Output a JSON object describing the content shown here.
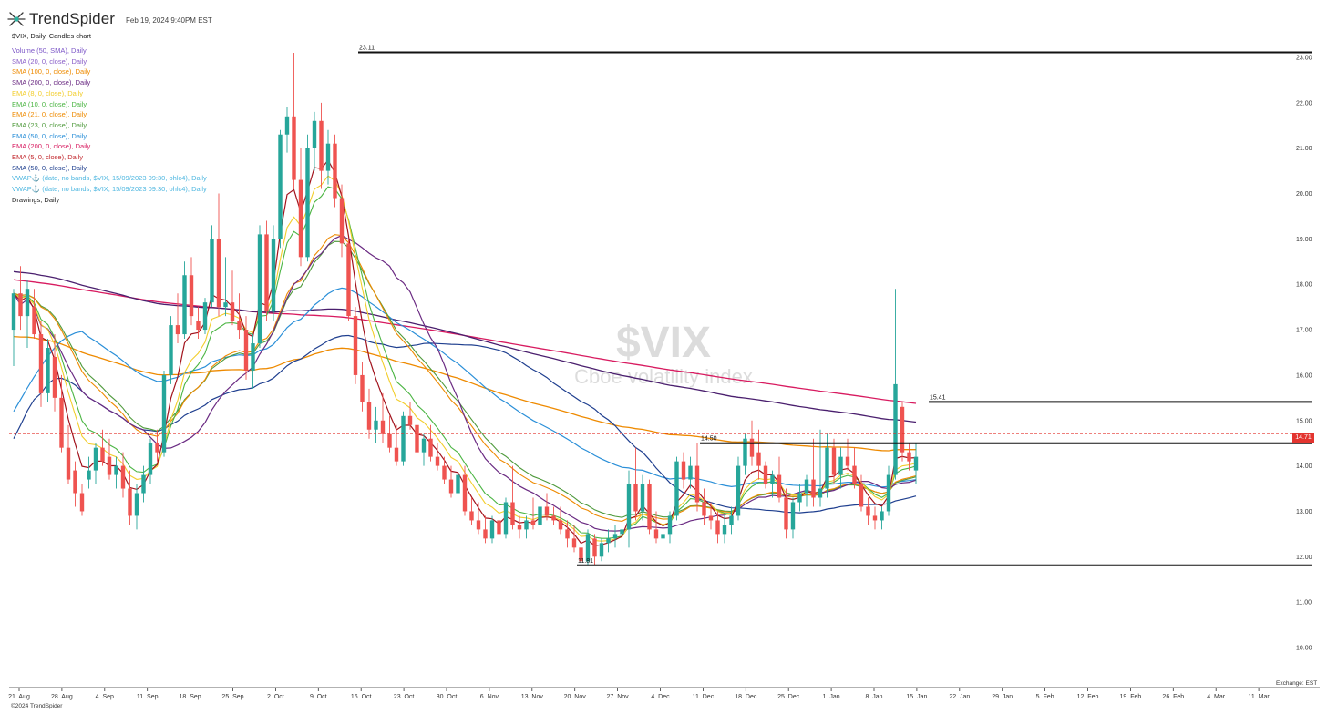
{
  "header": {
    "brand_name": "TrendSpider",
    "timestamp": "Feb 19, 2024 9:40PM EST"
  },
  "chart_desc": "$VIX, Daily, Candles chart",
  "legend": [
    {
      "label": "Volume (50, SMA), Daily",
      "color": "#7b55c7"
    },
    {
      "label": "SMA (20, 0, close), Daily",
      "color": "#8a5fc8"
    },
    {
      "label": "SMA (100, 0, close), Daily",
      "color": "#ee8a00"
    },
    {
      "label": "SMA (200, 0, close), Daily",
      "color": "#6a2a82"
    },
    {
      "label": "EMA (8, 0, close), Daily",
      "color": "#f2cd2b"
    },
    {
      "label": "EMA (10, 0, close), Daily",
      "color": "#4bb543"
    },
    {
      "label": "EMA (21, 0, close), Daily",
      "color": "#ee8a00"
    },
    {
      "label": "EMA (23, 0, close), Daily",
      "color": "#4f9a3c"
    },
    {
      "label": "EMA (50, 0, close), Daily",
      "color": "#2a8fd8"
    },
    {
      "label": "EMA (200, 0, close), Daily",
      "color": "#d81b60"
    },
    {
      "label": "EMA (5, 0, close), Daily",
      "color": "#c2272d"
    },
    {
      "label": "SMA (50, 0, close), Daily",
      "color": "#1f3f8f"
    },
    {
      "label": "VWAP⚓ (date, no bands, $VIX, 15/09/2023 09:30, ohlc4), Daily",
      "color": "#4fb7e0"
    },
    {
      "label": "VWAP⚓ (date, no bands, $VIX, 15/09/2023 09:30, ohlc4), Daily",
      "color": "#4fb7e0"
    },
    {
      "label": "Drawings, Daily",
      "color": "#222222"
    }
  ],
  "colors": {
    "up": "#26a69a",
    "down": "#ef5350",
    "price_line": "#e3342f"
  },
  "chart_data": {
    "type": "candlestick",
    "symbol": "$VIX",
    "watermark_symbol": "$VIX",
    "watermark_name": "Cboe volatility index",
    "y_axis": {
      "min": 9.5,
      "max": 23.1,
      "ticks": [
        "10.00",
        "11.00",
        "12.00",
        "13.00",
        "14.00",
        "15.00",
        "16.00",
        "17.00",
        "18.00",
        "19.00",
        "20.00",
        "21.00",
        "22.00",
        "23.00"
      ]
    },
    "x_ticks": [
      "21. Aug",
      "28. Aug",
      "4. Sep",
      "11. Sep",
      "18. Sep",
      "25. Sep",
      "2. Oct",
      "9. Oct",
      "16. Oct",
      "23. Oct",
      "30. Oct",
      "6. Nov",
      "13. Nov",
      "20. Nov",
      "27. Nov",
      "4. Dec",
      "11. Dec",
      "18. Dec",
      "25. Dec",
      "1. Jan",
      "8. Jan",
      "15. Jan",
      "22. Jan",
      "29. Jan",
      "5. Feb",
      "12. Feb",
      "19. Feb",
      "26. Feb",
      "4. Mar",
      "11. Mar"
    ],
    "current_price": 14.71,
    "current_price_label": "14.71",
    "horizontal_levels": [
      {
        "value": 23.11,
        "label": "23.11",
        "from": "21. Aug"
      },
      {
        "value": 15.41,
        "label": "15.41",
        "from": "15. Jan"
      },
      {
        "value": 14.5,
        "label": "14.50",
        "from": "4. Dec"
      },
      {
        "value": 11.81,
        "label": "11.81",
        "from": "13. Nov"
      }
    ],
    "candles": [
      {
        "o": 17.0,
        "h": 17.9,
        "l": 16.2,
        "c": 17.8
      },
      {
        "o": 17.8,
        "h": 18.4,
        "l": 17.0,
        "c": 17.3
      },
      {
        "o": 17.3,
        "h": 18.1,
        "l": 16.6,
        "c": 17.9
      },
      {
        "o": 17.5,
        "h": 17.9,
        "l": 16.8,
        "c": 16.9
      },
      {
        "o": 16.9,
        "h": 17.2,
        "l": 15.3,
        "c": 15.6
      },
      {
        "o": 15.6,
        "h": 16.8,
        "l": 15.4,
        "c": 16.6
      },
      {
        "o": 16.4,
        "h": 16.9,
        "l": 15.2,
        "c": 15.5
      },
      {
        "o": 15.5,
        "h": 16.0,
        "l": 14.3,
        "c": 14.4
      },
      {
        "o": 14.4,
        "h": 14.9,
        "l": 13.6,
        "c": 13.7
      },
      {
        "o": 13.9,
        "h": 14.1,
        "l": 13.1,
        "c": 13.4
      },
      {
        "o": 13.4,
        "h": 13.6,
        "l": 12.9,
        "c": 13.0
      },
      {
        "o": 13.7,
        "h": 14.2,
        "l": 13.5,
        "c": 13.9
      },
      {
        "o": 13.9,
        "h": 14.5,
        "l": 13.6,
        "c": 14.4
      },
      {
        "o": 14.4,
        "h": 14.8,
        "l": 14.0,
        "c": 14.1
      },
      {
        "o": 14.2,
        "h": 14.6,
        "l": 13.7,
        "c": 13.8
      },
      {
        "o": 13.8,
        "h": 14.2,
        "l": 13.5,
        "c": 14.0
      },
      {
        "o": 14.0,
        "h": 14.3,
        "l": 13.3,
        "c": 13.5
      },
      {
        "o": 13.5,
        "h": 13.9,
        "l": 12.7,
        "c": 12.9
      },
      {
        "o": 12.9,
        "h": 13.6,
        "l": 12.6,
        "c": 13.4
      },
      {
        "o": 13.4,
        "h": 14.0,
        "l": 13.2,
        "c": 13.8
      },
      {
        "o": 13.8,
        "h": 14.6,
        "l": 13.6,
        "c": 14.5
      },
      {
        "o": 14.5,
        "h": 14.8,
        "l": 14.1,
        "c": 14.3
      },
      {
        "o": 14.3,
        "h": 16.1,
        "l": 14.2,
        "c": 16.0
      },
      {
        "o": 16.0,
        "h": 17.3,
        "l": 15.8,
        "c": 17.1
      },
      {
        "o": 17.1,
        "h": 17.8,
        "l": 16.7,
        "c": 16.9
      },
      {
        "o": 16.9,
        "h": 18.5,
        "l": 16.8,
        "c": 18.2
      },
      {
        "o": 18.2,
        "h": 18.6,
        "l": 17.1,
        "c": 17.3
      },
      {
        "o": 17.2,
        "h": 17.5,
        "l": 16.8,
        "c": 17.0
      },
      {
        "o": 17.0,
        "h": 17.7,
        "l": 16.9,
        "c": 17.6
      },
      {
        "o": 17.6,
        "h": 19.3,
        "l": 17.5,
        "c": 19.0
      },
      {
        "o": 19.0,
        "h": 20.0,
        "l": 17.3,
        "c": 17.5
      },
      {
        "o": 17.5,
        "h": 18.6,
        "l": 17.3,
        "c": 17.6
      },
      {
        "o": 17.6,
        "h": 18.3,
        "l": 17.1,
        "c": 17.2
      },
      {
        "o": 17.2,
        "h": 17.8,
        "l": 16.8,
        "c": 17.0
      },
      {
        "o": 17.0,
        "h": 17.3,
        "l": 15.9,
        "c": 16.1
      },
      {
        "o": 16.1,
        "h": 16.9,
        "l": 15.7,
        "c": 16.7
      },
      {
        "o": 16.7,
        "h": 19.3,
        "l": 16.6,
        "c": 19.1
      },
      {
        "o": 19.1,
        "h": 19.4,
        "l": 17.2,
        "c": 17.4
      },
      {
        "o": 17.4,
        "h": 19.3,
        "l": 17.2,
        "c": 19.0
      },
      {
        "o": 19.0,
        "h": 21.4,
        "l": 18.8,
        "c": 21.3
      },
      {
        "o": 21.3,
        "h": 21.9,
        "l": 20.9,
        "c": 21.7
      },
      {
        "o": 21.7,
        "h": 23.1,
        "l": 20.1,
        "c": 20.3
      },
      {
        "o": 20.3,
        "h": 21.0,
        "l": 18.4,
        "c": 18.6
      },
      {
        "o": 18.6,
        "h": 21.3,
        "l": 18.5,
        "c": 21.0
      },
      {
        "o": 21.0,
        "h": 21.8,
        "l": 20.5,
        "c": 21.6
      },
      {
        "o": 21.6,
        "h": 22.0,
        "l": 20.1,
        "c": 20.5
      },
      {
        "o": 20.5,
        "h": 21.4,
        "l": 20.2,
        "c": 21.1
      },
      {
        "o": 21.1,
        "h": 21.3,
        "l": 19.7,
        "c": 19.9
      },
      {
        "o": 19.9,
        "h": 20.2,
        "l": 18.6,
        "c": 18.9
      },
      {
        "o": 18.9,
        "h": 19.0,
        "l": 17.2,
        "c": 17.3
      },
      {
        "o": 17.3,
        "h": 17.5,
        "l": 15.8,
        "c": 16.0
      },
      {
        "o": 16.0,
        "h": 16.3,
        "l": 15.2,
        "c": 15.4
      },
      {
        "o": 15.4,
        "h": 15.7,
        "l": 14.6,
        "c": 14.8
      },
      {
        "o": 14.8,
        "h": 15.3,
        "l": 14.5,
        "c": 15.0
      },
      {
        "o": 15.0,
        "h": 15.6,
        "l": 14.5,
        "c": 14.7
      },
      {
        "o": 14.7,
        "h": 15.1,
        "l": 14.3,
        "c": 14.4
      },
      {
        "o": 14.4,
        "h": 14.9,
        "l": 14.0,
        "c": 14.1
      },
      {
        "o": 14.1,
        "h": 15.2,
        "l": 14.0,
        "c": 15.1
      },
      {
        "o": 15.1,
        "h": 15.4,
        "l": 14.8,
        "c": 14.9
      },
      {
        "o": 14.9,
        "h": 15.1,
        "l": 14.2,
        "c": 14.3
      },
      {
        "o": 14.3,
        "h": 14.7,
        "l": 14.0,
        "c": 14.6
      },
      {
        "o": 14.6,
        "h": 14.9,
        "l": 14.1,
        "c": 14.2
      },
      {
        "o": 14.2,
        "h": 14.5,
        "l": 13.9,
        "c": 14.0
      },
      {
        "o": 14.0,
        "h": 14.2,
        "l": 13.6,
        "c": 13.7
      },
      {
        "o": 13.7,
        "h": 14.0,
        "l": 13.3,
        "c": 13.4
      },
      {
        "o": 13.4,
        "h": 13.9,
        "l": 13.1,
        "c": 13.8
      },
      {
        "o": 13.8,
        "h": 14.0,
        "l": 12.9,
        "c": 13.0
      },
      {
        "o": 13.0,
        "h": 13.3,
        "l": 12.7,
        "c": 12.8
      },
      {
        "o": 12.8,
        "h": 13.2,
        "l": 12.5,
        "c": 12.6
      },
      {
        "o": 12.6,
        "h": 12.9,
        "l": 12.3,
        "c": 12.4
      },
      {
        "o": 12.4,
        "h": 12.9,
        "l": 12.3,
        "c": 12.8
      },
      {
        "o": 12.8,
        "h": 13.0,
        "l": 12.4,
        "c": 12.5
      },
      {
        "o": 12.5,
        "h": 13.3,
        "l": 12.4,
        "c": 13.2
      },
      {
        "o": 13.2,
        "h": 14.0,
        "l": 12.6,
        "c": 12.7
      },
      {
        "o": 12.7,
        "h": 12.9,
        "l": 12.4,
        "c": 12.6
      },
      {
        "o": 12.6,
        "h": 12.9,
        "l": 12.4,
        "c": 12.8
      },
      {
        "o": 12.8,
        "h": 13.3,
        "l": 12.6,
        "c": 12.7
      },
      {
        "o": 12.7,
        "h": 13.2,
        "l": 12.5,
        "c": 13.1
      },
      {
        "o": 13.1,
        "h": 13.4,
        "l": 12.8,
        "c": 12.9
      },
      {
        "o": 12.9,
        "h": 13.1,
        "l": 12.7,
        "c": 12.8
      },
      {
        "o": 12.8,
        "h": 13.1,
        "l": 12.5,
        "c": 12.6
      },
      {
        "o": 12.6,
        "h": 12.8,
        "l": 12.2,
        "c": 12.4
      },
      {
        "o": 12.4,
        "h": 12.7,
        "l": 12.1,
        "c": 12.2
      },
      {
        "o": 12.2,
        "h": 12.5,
        "l": 11.8,
        "c": 11.9
      },
      {
        "o": 11.9,
        "h": 12.6,
        "l": 11.8,
        "c": 12.5
      },
      {
        "o": 12.4,
        "h": 12.5,
        "l": 11.8,
        "c": 12.0
      },
      {
        "o": 12.0,
        "h": 12.4,
        "l": 11.9,
        "c": 12.3
      },
      {
        "o": 12.3,
        "h": 12.6,
        "l": 12.1,
        "c": 12.4
      },
      {
        "o": 12.4,
        "h": 12.7,
        "l": 12.2,
        "c": 12.5
      },
      {
        "o": 12.5,
        "h": 13.7,
        "l": 12.3,
        "c": 12.6
      },
      {
        "o": 12.6,
        "h": 13.9,
        "l": 12.2,
        "c": 13.6
      },
      {
        "o": 13.6,
        "h": 14.4,
        "l": 12.8,
        "c": 13.0
      },
      {
        "o": 13.0,
        "h": 13.8,
        "l": 12.8,
        "c": 13.6
      },
      {
        "o": 13.6,
        "h": 13.7,
        "l": 12.5,
        "c": 12.6
      },
      {
        "o": 12.6,
        "h": 13.0,
        "l": 12.3,
        "c": 12.4
      },
      {
        "o": 12.4,
        "h": 12.9,
        "l": 12.2,
        "c": 12.5
      },
      {
        "o": 12.5,
        "h": 13.0,
        "l": 12.3,
        "c": 12.9
      },
      {
        "o": 12.9,
        "h": 14.2,
        "l": 12.8,
        "c": 14.1
      },
      {
        "o": 14.1,
        "h": 14.3,
        "l": 13.5,
        "c": 13.7
      },
      {
        "o": 13.7,
        "h": 14.2,
        "l": 13.5,
        "c": 14.0
      },
      {
        "o": 14.0,
        "h": 14.5,
        "l": 13.0,
        "c": 13.2
      },
      {
        "o": 13.2,
        "h": 13.5,
        "l": 12.7,
        "c": 12.9
      },
      {
        "o": 12.9,
        "h": 13.2,
        "l": 12.6,
        "c": 12.8
      },
      {
        "o": 12.8,
        "h": 13.0,
        "l": 12.3,
        "c": 12.5
      },
      {
        "o": 12.5,
        "h": 12.9,
        "l": 12.3,
        "c": 12.7
      },
      {
        "o": 12.7,
        "h": 13.1,
        "l": 12.5,
        "c": 12.9
      },
      {
        "o": 12.9,
        "h": 14.2,
        "l": 12.8,
        "c": 14.0
      },
      {
        "o": 14.0,
        "h": 14.7,
        "l": 13.8,
        "c": 14.6
      },
      {
        "o": 14.6,
        "h": 15.0,
        "l": 14.0,
        "c": 14.2
      },
      {
        "o": 14.3,
        "h": 14.8,
        "l": 13.7,
        "c": 14.0
      },
      {
        "o": 14.0,
        "h": 14.1,
        "l": 13.5,
        "c": 13.6
      },
      {
        "o": 13.6,
        "h": 13.9,
        "l": 13.3,
        "c": 13.8
      },
      {
        "o": 13.8,
        "h": 14.2,
        "l": 13.2,
        "c": 13.3
      },
      {
        "o": 13.3,
        "h": 13.5,
        "l": 12.4,
        "c": 12.6
      },
      {
        "o": 12.6,
        "h": 13.3,
        "l": 12.4,
        "c": 13.2
      },
      {
        "o": 13.2,
        "h": 13.6,
        "l": 13.0,
        "c": 13.4
      },
      {
        "o": 13.4,
        "h": 13.8,
        "l": 13.1,
        "c": 13.7
      },
      {
        "o": 13.7,
        "h": 14.6,
        "l": 13.1,
        "c": 13.3
      },
      {
        "o": 13.3,
        "h": 14.8,
        "l": 13.1,
        "c": 13.5
      },
      {
        "o": 13.5,
        "h": 14.7,
        "l": 13.3,
        "c": 14.4
      },
      {
        "o": 14.4,
        "h": 14.6,
        "l": 13.6,
        "c": 13.8
      },
      {
        "o": 13.8,
        "h": 14.4,
        "l": 13.5,
        "c": 14.2
      },
      {
        "o": 14.2,
        "h": 14.6,
        "l": 13.9,
        "c": 14.0
      },
      {
        "o": 14.0,
        "h": 14.4,
        "l": 13.5,
        "c": 13.6
      },
      {
        "o": 13.6,
        "h": 13.8,
        "l": 13.0,
        "c": 13.1
      },
      {
        "o": 13.1,
        "h": 13.3,
        "l": 12.7,
        "c": 12.9
      },
      {
        "o": 12.9,
        "h": 13.1,
        "l": 12.6,
        "c": 12.8
      },
      {
        "o": 12.8,
        "h": 13.1,
        "l": 12.6,
        "c": 13.0
      },
      {
        "o": 13.0,
        "h": 14.0,
        "l": 12.9,
        "c": 13.8
      },
      {
        "o": 13.8,
        "h": 17.9,
        "l": 13.7,
        "c": 15.8
      },
      {
        "o": 15.3,
        "h": 15.4,
        "l": 14.1,
        "c": 14.3
      },
      {
        "o": 14.3,
        "h": 14.5,
        "l": 13.9,
        "c": 14.1
      },
      {
        "o": 13.9,
        "h": 14.5,
        "l": 13.6,
        "c": 14.2
      }
    ]
  }
}
